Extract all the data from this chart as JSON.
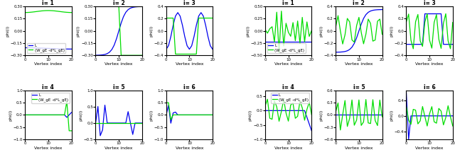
{
  "n_pts": 21,
  "title_fontsize": 5.5,
  "label_fontsize": 4.5,
  "tick_fontsize": 4.0,
  "legend_fontsize": 4.0,
  "blue_color": "#0000EE",
  "green_color": "#00DD00",
  "xlabel": "Vertex index",
  "ylabel": "phi(i)",
  "legend_L": "L",
  "legend_W": "(W_gE -d*L_gE)",
  "lw": 0.9
}
